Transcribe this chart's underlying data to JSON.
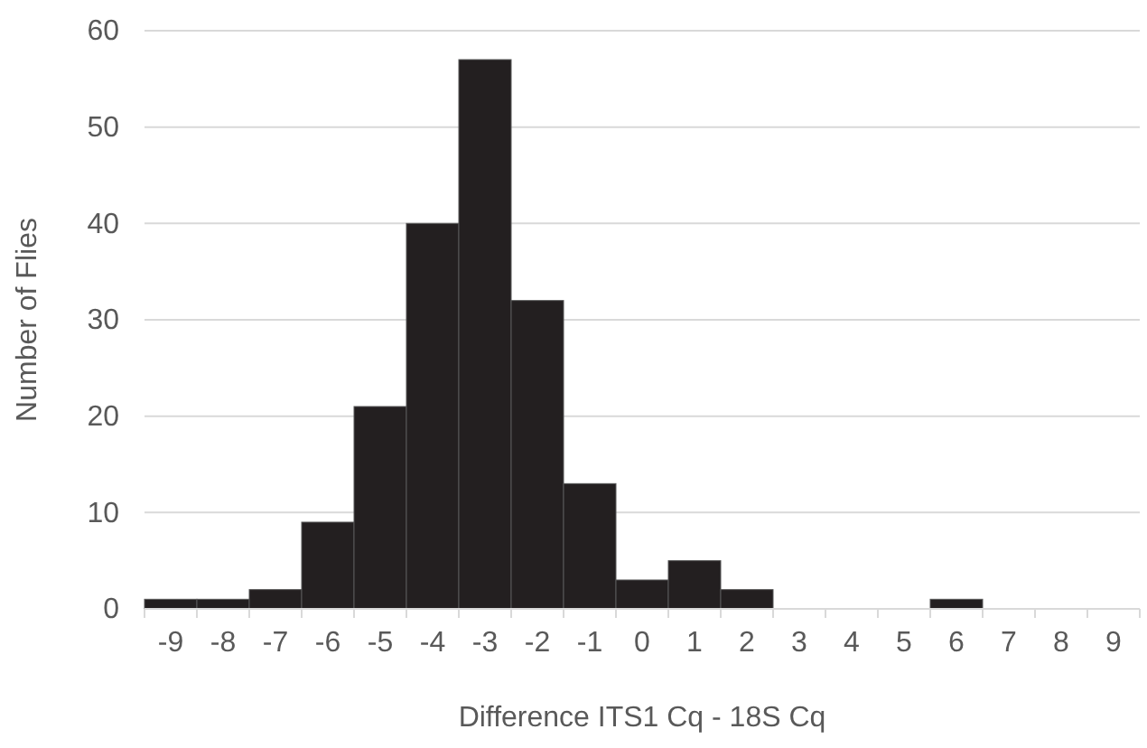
{
  "chart_data": {
    "type": "bar",
    "xlabel": "Difference ITS1 Cq - 18S Cq",
    "ylabel": "Number of Flies",
    "categories": [
      "-9",
      "-8",
      "-7",
      "-6",
      "-5",
      "-4",
      "-3",
      "-2",
      "-1",
      "0",
      "1",
      "2",
      "3",
      "4",
      "5",
      "6",
      "7",
      "8",
      "9"
    ],
    "values": [
      1,
      1,
      2,
      9,
      21,
      40,
      57,
      32,
      13,
      3,
      5,
      2,
      0,
      0,
      0,
      1,
      0,
      0,
      0
    ],
    "color": "#231f20",
    "ylim": [
      0,
      60
    ],
    "yticks": [
      0,
      10,
      20,
      30,
      40,
      50,
      60
    ],
    "grid": "y"
  }
}
